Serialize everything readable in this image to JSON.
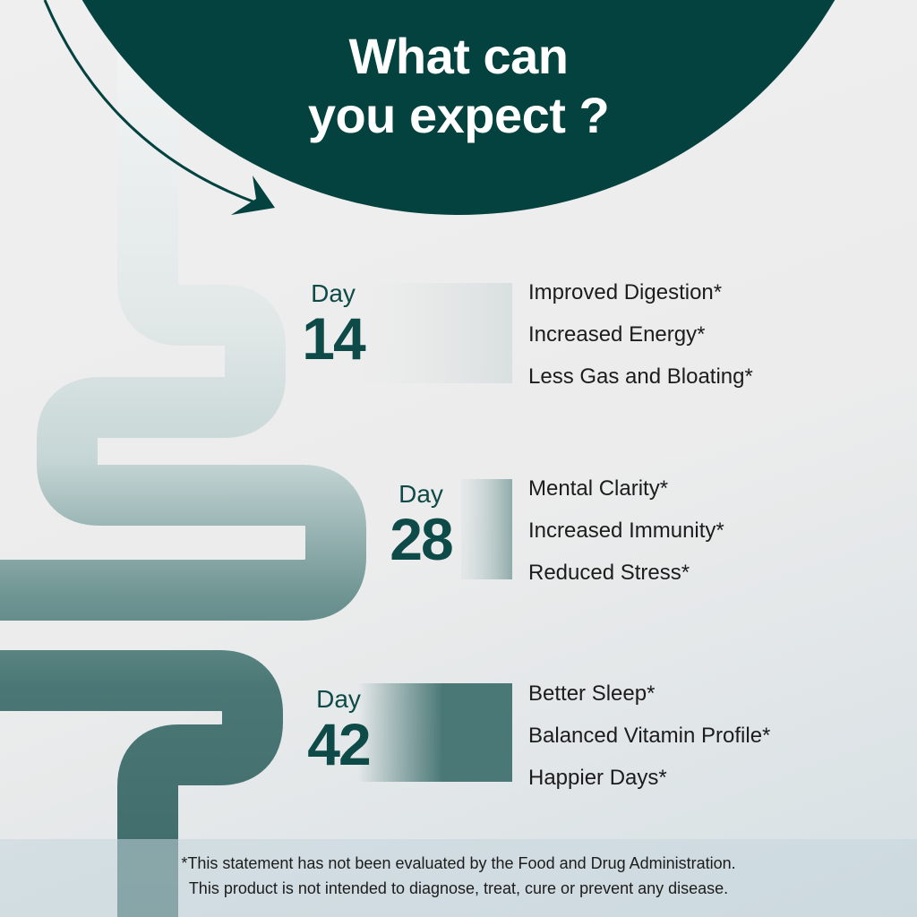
{
  "title": {
    "line1": "What can",
    "line2": "you expect ?"
  },
  "colors": {
    "primary": "#03423f",
    "accent_dark": "#4a7876",
    "text": "#1c1c1c"
  },
  "milestones": [
    {
      "day_label": "Day",
      "day_number": "14",
      "benefits": [
        "Improved Digestion*",
        "Increased Energy*",
        "Less Gas and Bloating*"
      ]
    },
    {
      "day_label": "Day",
      "day_number": "28",
      "benefits": [
        "Mental Clarity*",
        "Increased Immunity*",
        "Reduced Stress*"
      ]
    },
    {
      "day_label": "Day",
      "day_number": "42",
      "benefits": [
        "Better Sleep*",
        "Balanced Vitamin Profile*",
        "Happier Days*"
      ]
    }
  ],
  "disclaimer": {
    "line1": "*This statement has not been evaluated by the Food and Drug Administration.",
    "line2": "This product is not intended to diagnose, treat, cure or prevent any disease."
  }
}
